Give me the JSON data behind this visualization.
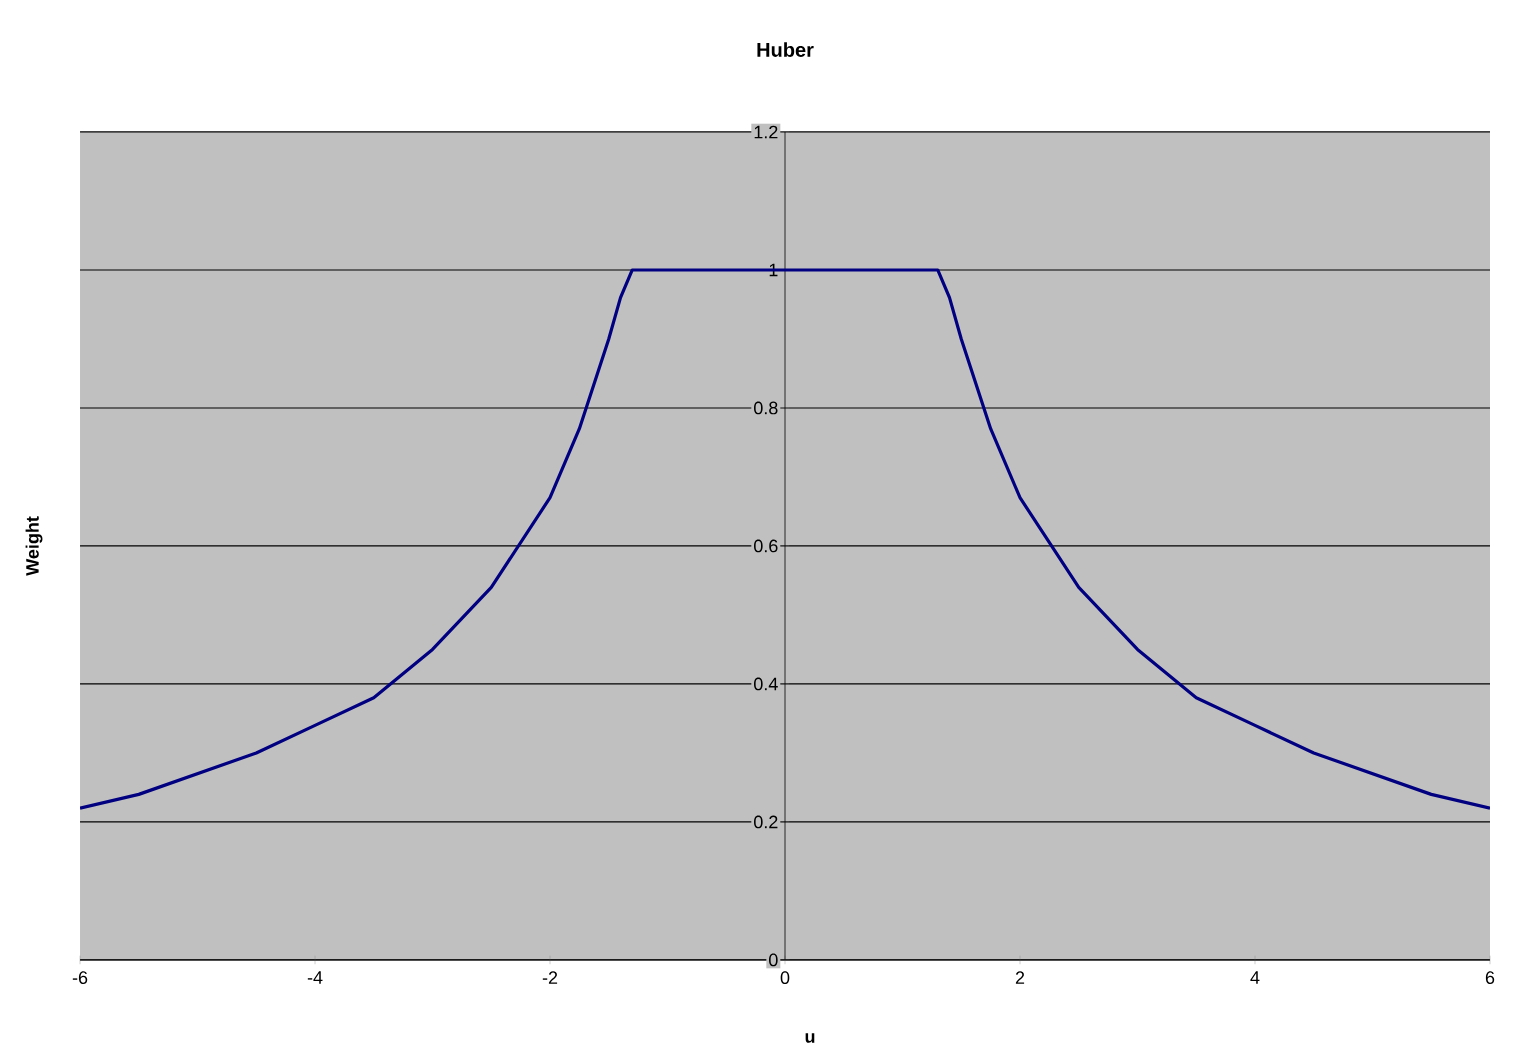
{
  "chart_data": {
    "type": "line",
    "title": "Huber",
    "xlabel": "u",
    "ylabel": "Weight",
    "series": [
      {
        "color": "#000080",
        "x": [
          -6,
          -5.5,
          -5,
          -4.5,
          -4,
          -3.5,
          -3,
          -2.5,
          -2,
          -1.75,
          -1.5,
          -1.4,
          -1.3,
          -1.2,
          0,
          1.2,
          1.3,
          1.4,
          1.5,
          1.75,
          2,
          2.5,
          3,
          3.5,
          4,
          4.5,
          5,
          5.5,
          6
        ],
        "values": [
          0.22,
          0.24,
          0.27,
          0.3,
          0.34,
          0.38,
          0.45,
          0.54,
          0.67,
          0.77,
          0.9,
          0.96,
          1.0,
          1.0,
          1.0,
          1.0,
          1.0,
          0.96,
          0.9,
          0.77,
          0.67,
          0.54,
          0.45,
          0.38,
          0.34,
          0.3,
          0.27,
          0.24,
          0.22
        ]
      }
    ],
    "xlim": [
      -6,
      6
    ],
    "ylim": [
      0,
      1.2
    ],
    "xticks": [
      -6,
      -4,
      -2,
      0,
      2,
      4,
      6
    ],
    "yticks": [
      0,
      0.2,
      0.4,
      0.6,
      0.8,
      1,
      1.2
    ],
    "grid": "y",
    "marker": "none",
    "line_style": "solid"
  }
}
